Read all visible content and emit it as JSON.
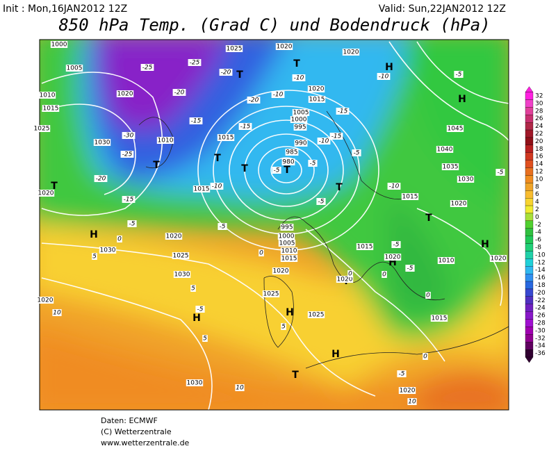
{
  "header": {
    "init": "Init : Mon,16JAN2012 12Z",
    "valid": "Valid: Sun,22JAN2012 12Z",
    "title": "850 hPa Temp. (Grad C) und Bodendruck (hPa)"
  },
  "colorbar": {
    "labels": [
      32,
      30,
      28,
      26,
      24,
      22,
      20,
      18,
      16,
      14,
      12,
      10,
      8,
      6,
      4,
      2,
      0,
      -2,
      -4,
      -6,
      -8,
      -10,
      -12,
      -14,
      -16,
      -18,
      -20,
      -22,
      -24,
      -26,
      -28,
      -30,
      -32,
      -34,
      -36
    ],
    "colors": [
      "#ff20e0",
      "#f040c8",
      "#e0409a",
      "#c83070",
      "#b02848",
      "#a01828",
      "#901018",
      "#b82020",
      "#d03820",
      "#e05020",
      "#e87020",
      "#f08c20",
      "#f0a428",
      "#f8bc30",
      "#f8d430",
      "#f0ec30",
      "#a8e038",
      "#50d030",
      "#30c040",
      "#20c858",
      "#20d078",
      "#20d0a8",
      "#20d0d8",
      "#30b8f0",
      "#3090f0",
      "#2868e0",
      "#3848d0",
      "#5030c0",
      "#7020c0",
      "#8818c8",
      "#a010d0",
      "#a000b0",
      "#900090",
      "#600060",
      "#300030"
    ]
  },
  "map": {
    "pressure_centers": [
      "H",
      "H",
      "H",
      "H",
      "H",
      "H",
      "H",
      "H",
      "T",
      "T",
      "T",
      "T",
      "T",
      "T",
      "T",
      "T",
      "T",
      "T",
      "T"
    ],
    "isobar_labels": [
      "1000",
      "1005",
      "1010",
      "1015",
      "1020",
      "1025",
      "1030",
      "1025",
      "1020",
      "1020",
      "1005",
      "1000",
      "995",
      "990",
      "985",
      "980",
      "1020",
      "1015",
      "1045",
      "1040",
      "1035",
      "1030",
      "1020",
      "1015",
      "1015",
      "1020",
      "1025",
      "1030",
      "1030",
      "1025",
      "1020",
      "1015",
      "1010",
      "1005",
      "1000",
      "995",
      "1020",
      "1020",
      "1015",
      "1020",
      "1010",
      "1020",
      "1015",
      "1025",
      "1020",
      "1030",
      "1020",
      "1010",
      "1015"
    ],
    "temperature_labels": [
      "-25",
      "-25",
      "-20",
      "-20",
      "-15",
      "-20",
      "-15",
      "-30",
      "-25",
      "-20",
      "-15",
      "-10",
      "-10",
      "-15",
      "-15",
      "-10",
      "-5",
      "-5",
      "-10",
      "-5",
      "-10",
      "-5",
      "-5",
      "0",
      "5",
      "0",
      "-5",
      "-5",
      "0",
      "5",
      "5",
      "10",
      "5",
      "0",
      "-5",
      "10",
      "10",
      "-5",
      "-10",
      "-5",
      "-5",
      "0",
      "0",
      "-5"
    ]
  },
  "footer": [
    "Daten: ECMWF",
    "(C) Wetterzentrale",
    "www.wetterzentrale.de"
  ]
}
